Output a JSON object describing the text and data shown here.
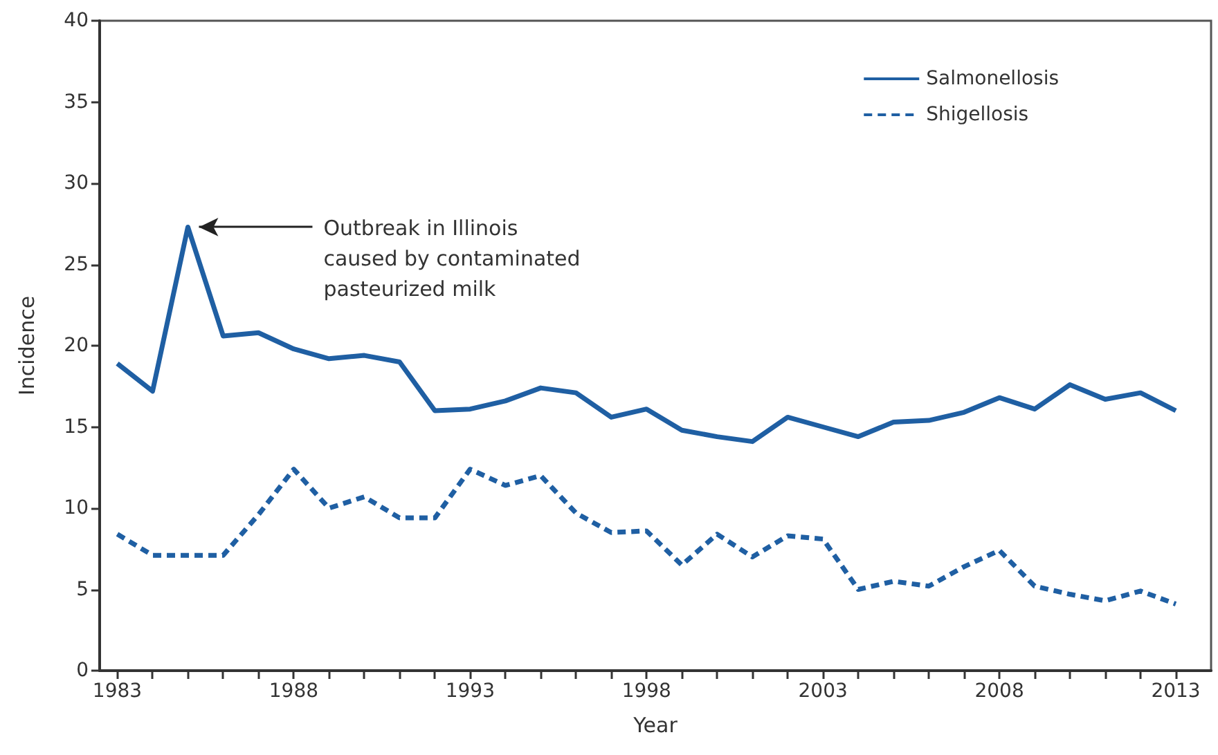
{
  "chart_data": {
    "type": "line",
    "xlabel": "Year",
    "ylabel": "Incidence",
    "x": [
      1983,
      1984,
      1985,
      1986,
      1987,
      1988,
      1989,
      1990,
      1991,
      1992,
      1993,
      1994,
      1995,
      1996,
      1997,
      1998,
      1999,
      2000,
      2001,
      2002,
      2003,
      2004,
      2005,
      2006,
      2007,
      2008,
      2009,
      2010,
      2011,
      2012,
      2013
    ],
    "series": [
      {
        "name": "Salmonellosis",
        "color": "#1f5fa3",
        "line_style": "solid",
        "values": [
          18.9,
          17.2,
          27.3,
          20.6,
          20.8,
          19.8,
          19.2,
          19.4,
          19.0,
          16.0,
          16.1,
          16.6,
          17.4,
          17.1,
          15.6,
          16.1,
          14.8,
          14.4,
          14.1,
          15.6,
          15.0,
          14.4,
          15.3,
          15.4,
          15.9,
          16.8,
          16.1,
          17.6,
          16.7,
          17.1,
          16.0
        ]
      },
      {
        "name": "Shigellosis",
        "color": "#1f5fa3",
        "line_style": "dashed",
        "values": [
          8.4,
          7.1,
          7.1,
          7.1,
          9.6,
          12.4,
          10.0,
          10.7,
          9.4,
          9.4,
          12.4,
          11.4,
          12.0,
          9.7,
          8.5,
          8.6,
          6.5,
          8.4,
          7.0,
          8.3,
          8.1,
          5.0,
          5.5,
          5.2,
          6.4,
          7.4,
          5.2,
          4.7,
          4.3,
          4.9,
          4.1
        ]
      }
    ],
    "xlim": [
      1982.5,
      2014
    ],
    "xticks": [
      1983,
      {
        "value": 1984,
        "label": null
      },
      {
        "value": 1985,
        "label": null
      },
      {
        "value": 1986,
        "label": null
      },
      {
        "value": 1987,
        "label": null
      },
      1988,
      {
        "value": 1989,
        "label": null
      },
      {
        "value": 1990,
        "label": null
      },
      {
        "value": 1991,
        "label": null
      },
      {
        "value": 1992,
        "label": null
      },
      1993,
      {
        "value": 1994,
        "label": null
      },
      {
        "value": 1995,
        "label": null
      },
      {
        "value": 1996,
        "label": null
      },
      {
        "value": 1997,
        "label": null
      },
      1998,
      {
        "value": 1999,
        "label": null
      },
      {
        "value": 2000,
        "label": null
      },
      {
        "value": 2001,
        "label": null
      },
      {
        "value": 2002,
        "label": null
      },
      2003,
      {
        "value": 2004,
        "label": null
      },
      {
        "value": 2005,
        "label": null
      },
      {
        "value": 2006,
        "label": null
      },
      {
        "value": 2007,
        "label": null
      },
      2008,
      {
        "value": 2009,
        "label": null
      },
      {
        "value": 2010,
        "label": null
      },
      {
        "value": 2011,
        "label": null
      },
      {
        "value": 2012,
        "label": null
      },
      2013
    ],
    "ylim": [
      0,
      40
    ],
    "yticks": [
      0,
      5,
      10,
      15,
      20,
      25,
      30,
      35,
      40
    ],
    "grid": false,
    "legend": "top right",
    "marker": "none",
    "annotations": [
      {
        "text": "Outbreak in Illinois\ncaused by contaminated\npasteurized milk",
        "x": 1985,
        "y": 27.3
      }
    ]
  }
}
